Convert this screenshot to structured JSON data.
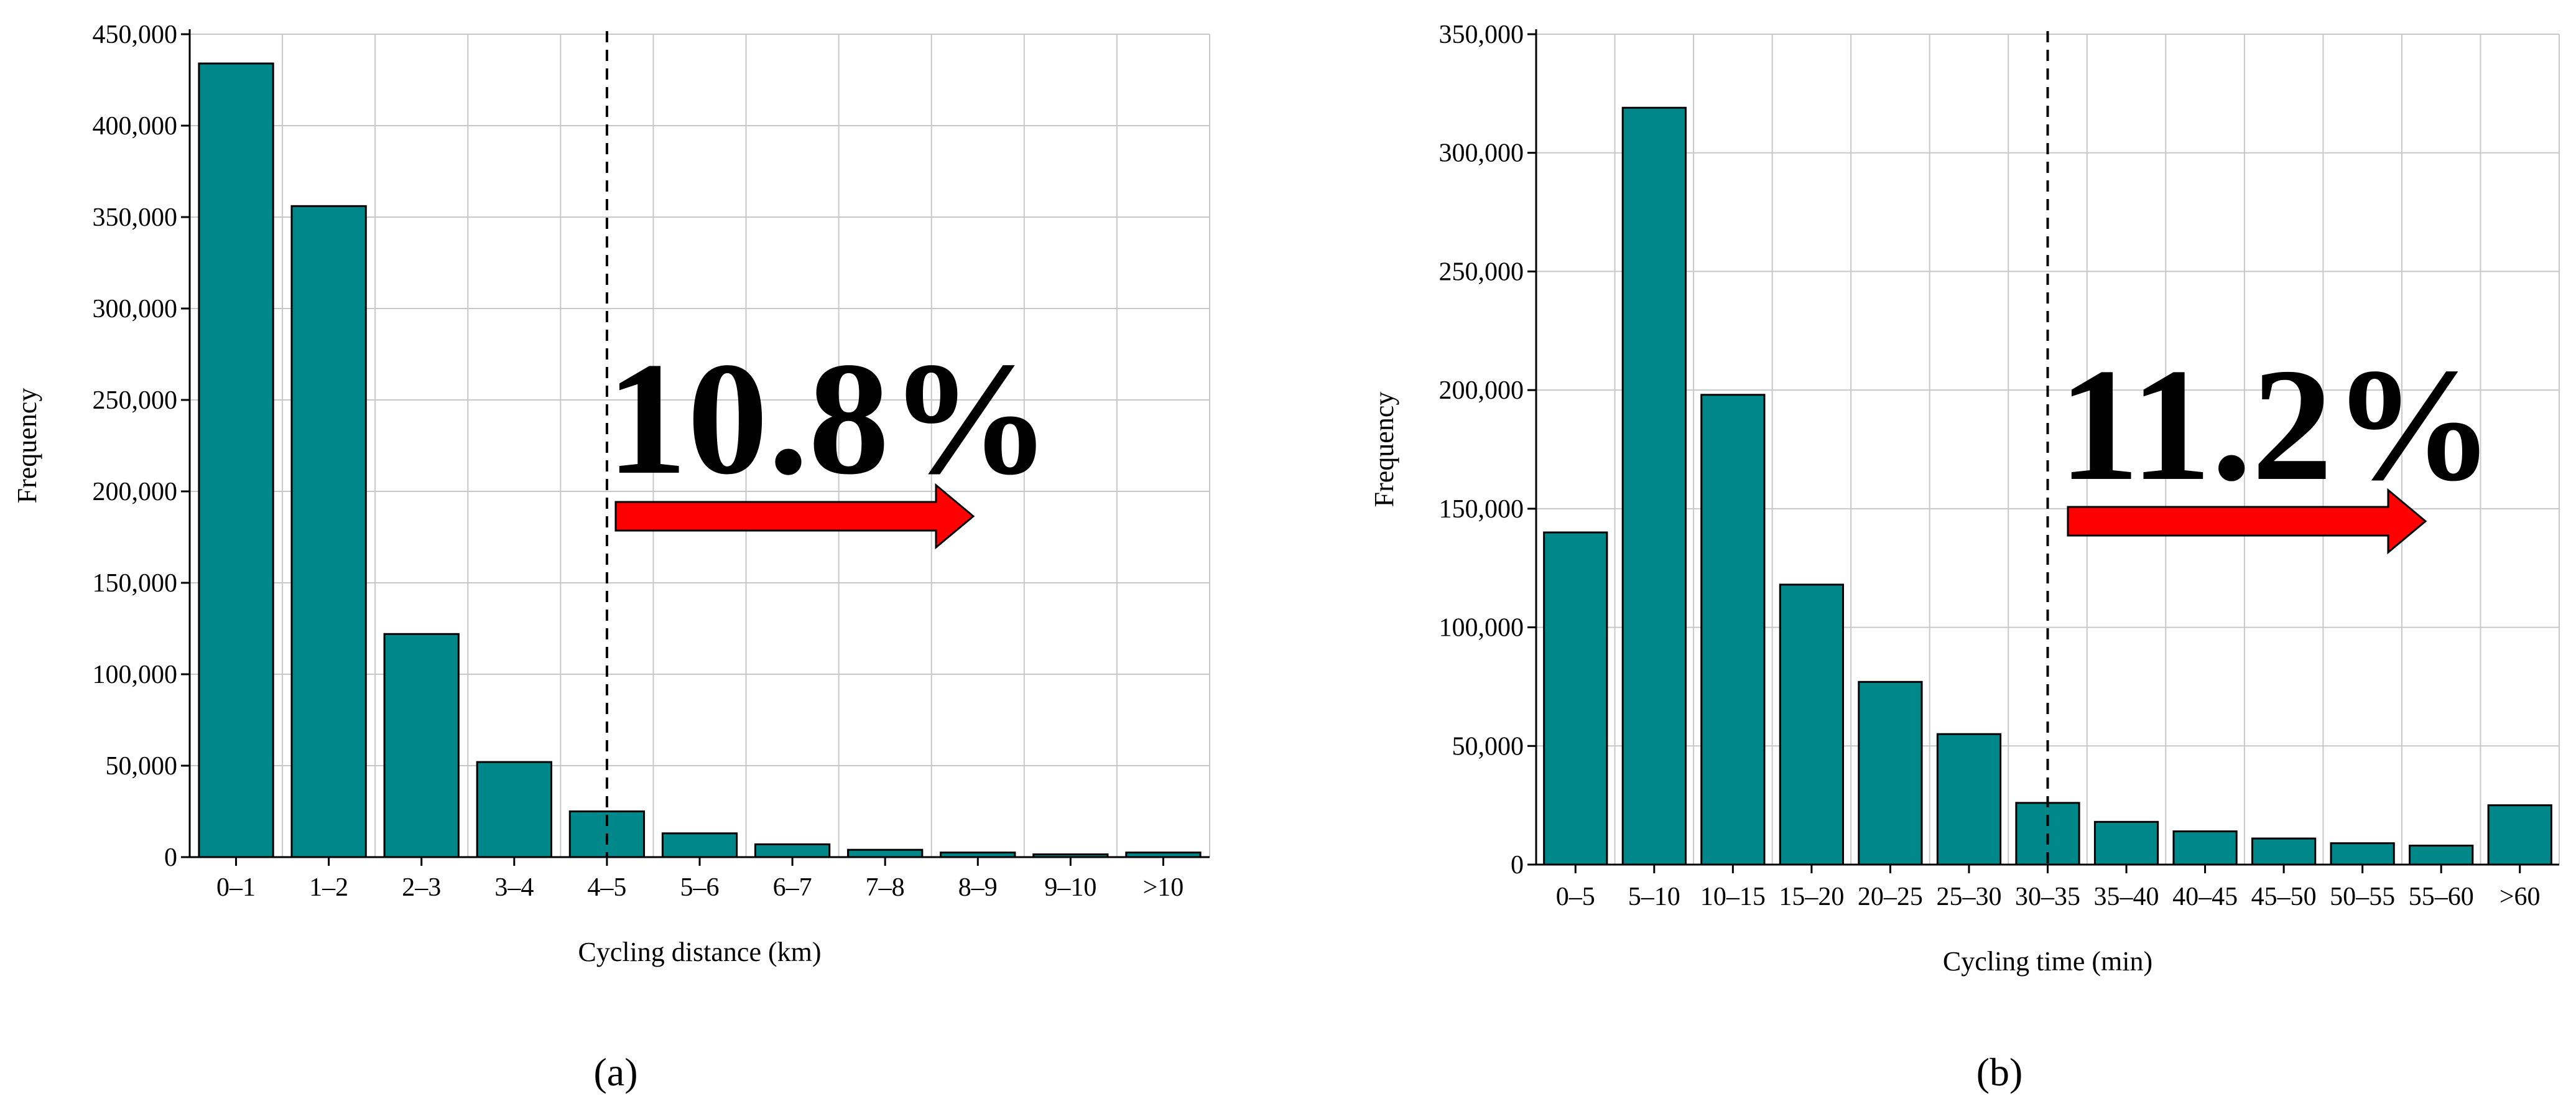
{
  "colors": {
    "bar": "#00878a",
    "bar_stroke": "#000000",
    "arrow": "#ff0000",
    "grid": "#c8c8c8"
  },
  "chart_data": [
    {
      "type": "bar",
      "panel_label": "(a)",
      "categories": [
        "0–1",
        "1–2",
        "2–3",
        "3–4",
        "4–5",
        "5–6",
        "6–7",
        "7–8",
        "8–9",
        "9–10",
        ">10"
      ],
      "values": [
        434000,
        356000,
        122000,
        52000,
        25000,
        13000,
        7000,
        4000,
        2500,
        1500,
        2500
      ],
      "ylim": [
        0,
        450000
      ],
      "yticks": [
        "0",
        "50,000",
        "100,000",
        "150,000",
        "200,000",
        "250,000",
        "300,000",
        "350,000",
        "400,000",
        "450,000"
      ],
      "xlabel": "Cycling distance (km)",
      "ylabel": "Frequency",
      "grid": true,
      "dashed_line_category": "4–5",
      "annotation": "10.8%"
    },
    {
      "type": "bar",
      "panel_label": "(b)",
      "categories": [
        "0–5",
        "5–10",
        "10–15",
        "15–20",
        "20–25",
        "25–30",
        "30–35",
        "35–40",
        "40–45",
        "45–50",
        "50–55",
        "55–60",
        ">60"
      ],
      "values": [
        140000,
        319000,
        198000,
        118000,
        77000,
        55000,
        26000,
        18000,
        14000,
        11000,
        9000,
        8000,
        25000
      ],
      "ylim": [
        0,
        350000
      ],
      "yticks": [
        "0",
        "50,000",
        "100,000",
        "150,000",
        "200,000",
        "250,000",
        "300,000",
        "350,000"
      ],
      "xlabel": "Cycling time (min)",
      "ylabel": "Frequency",
      "grid": true,
      "dashed_line_category": "30–35",
      "annotation": "11.2%"
    }
  ]
}
